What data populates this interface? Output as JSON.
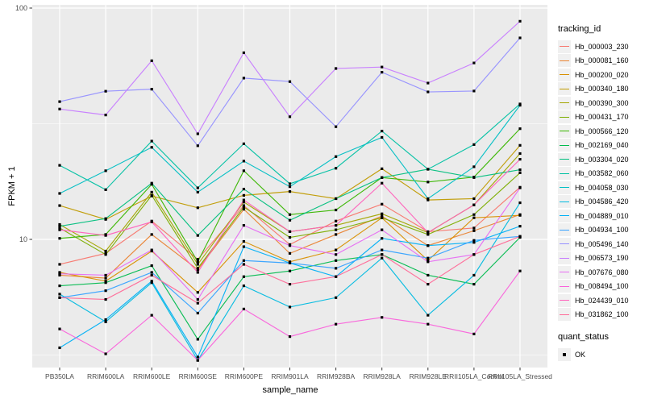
{
  "chart_data": {
    "type": "line",
    "title": "",
    "xlabel": "sample_name",
    "ylabel": "FPKM + 1",
    "y_scale": "log10",
    "y_major_ticks": [
      100,
      10
    ],
    "y_minor_ticks": [
      31.6,
      3.16
    ],
    "ylim": [
      2.8,
      102
    ],
    "grid": "on",
    "legend_position": "right",
    "legend_title": "tracking_id",
    "point_legend_title": "quant_status",
    "point_legend_items": [
      "OK"
    ],
    "point_shape": "black-square",
    "x_categories": [
      "PB350LA",
      "RRIM600LA",
      "RRIM600LE",
      "RRIM600SE",
      "RRIM600PE",
      "RRIM901LA",
      "RRIM928BA",
      "RRIM928LA",
      "RRIM928LE",
      "RRII105LA_Control",
      "RRII105LA_Stressed"
    ],
    "series": [
      {
        "name": "Hb_000003_230",
        "color": "#F8766D",
        "values": [
          7.8,
          8.7,
          12.0,
          8.2,
          14.0,
          9.5,
          12.0,
          14.2,
          10.8,
          11.2,
          16.8
        ]
      },
      {
        "name": "Hb_000081_160",
        "color": "#EA8331",
        "values": [
          7.0,
          6.8,
          10.5,
          7.4,
          13.5,
          8.7,
          10.5,
          12.6,
          9.4,
          10.9,
          12.8
        ]
      },
      {
        "name": "Hb_000200_020",
        "color": "#D89000",
        "values": [
          7.2,
          6.6,
          8.9,
          5.9,
          9.8,
          8.0,
          9.0,
          12.4,
          8.1,
          12.4,
          12.7
        ]
      },
      {
        "name": "Hb_000340_180",
        "color": "#C09B00",
        "values": [
          14.0,
          12.2,
          15.4,
          13.7,
          15.5,
          16.1,
          15.0,
          20.2,
          14.8,
          15.0,
          25.5
        ]
      },
      {
        "name": "Hb_000390_300",
        "color": "#A3A500",
        "values": [
          11.6,
          8.9,
          16.0,
          7.8,
          14.5,
          10.8,
          11.5,
          12.9,
          10.7,
          14.1,
          23.5
        ]
      },
      {
        "name": "Hb_000431_170",
        "color": "#7CAE00",
        "values": [
          11.2,
          8.6,
          15.5,
          7.5,
          13.8,
          10.2,
          11.0,
          12.4,
          10.5,
          12.8,
          19.4
        ]
      },
      {
        "name": "Hb_000566_120",
        "color": "#39B600",
        "values": [
          10.1,
          10.5,
          17.3,
          8.0,
          19.8,
          12.8,
          13.4,
          18.5,
          17.7,
          18.6,
          30.1
        ]
      },
      {
        "name": "Hb_002169_040",
        "color": "#00BB4E",
        "values": [
          6.3,
          6.5,
          7.7,
          3.7,
          6.9,
          7.3,
          8.1,
          8.6,
          7.0,
          6.4,
          10.2
        ]
      },
      {
        "name": "Hb_003304_020",
        "color": "#00BF7D",
        "values": [
          11.4,
          12.3,
          17.5,
          10.4,
          16.5,
          12.1,
          15.0,
          18.5,
          20.1,
          18.5,
          20.0
        ]
      },
      {
        "name": "Hb_003582_060",
        "color": "#00C1A3",
        "values": [
          20.9,
          16.4,
          26.6,
          16.7,
          25.9,
          17.4,
          20.3,
          29.4,
          20.1,
          25.7,
          38.5
        ]
      },
      {
        "name": "Hb_004058_030",
        "color": "#00BFC4",
        "values": [
          15.8,
          19.8,
          25.0,
          16.0,
          21.8,
          16.9,
          22.8,
          27.6,
          15.0,
          20.6,
          38.0
        ]
      },
      {
        "name": "Hb_004586_420",
        "color": "#00BAE0",
        "values": [
          5.8,
          4.4,
          6.5,
          3.0,
          6.3,
          5.1,
          5.6,
          8.3,
          4.7,
          7.0,
          14.4
        ]
      },
      {
        "name": "Hb_004889_010",
        "color": "#00B0F6",
        "values": [
          3.4,
          4.5,
          6.6,
          3.1,
          9.3,
          7.9,
          6.9,
          10.1,
          9.4,
          9.7,
          11.4
        ]
      },
      {
        "name": "Hb_004934_100",
        "color": "#35A2FF",
        "values": [
          5.6,
          6.0,
          7.2,
          4.8,
          8.1,
          7.9,
          7.5,
          9.0,
          8.3,
          9.9,
          10.3
        ]
      },
      {
        "name": "Hb_005496_140",
        "color": "#9590FF",
        "values": [
          39.4,
          43.7,
          44.6,
          25.4,
          49.8,
          48.1,
          30.7,
          52.8,
          43.4,
          43.8,
          74.3
        ]
      },
      {
        "name": "Hb_006573_190",
        "color": "#C77CFF",
        "values": [
          36.6,
          34.5,
          59.2,
          28.6,
          64.1,
          33.9,
          54.8,
          55.6,
          47.4,
          57.9,
          87.7
        ]
      },
      {
        "name": "Hb_007676_080",
        "color": "#E76BF3",
        "values": [
          7.1,
          7.0,
          9.0,
          5.5,
          11.5,
          9.4,
          8.6,
          11.0,
          8.0,
          8.6,
          16.7
        ]
      },
      {
        "name": "Hb_008494_100",
        "color": "#FA62DB",
        "values": [
          4.1,
          3.2,
          4.7,
          3.0,
          5.0,
          3.8,
          4.3,
          4.6,
          4.3,
          3.9,
          7.3
        ]
      },
      {
        "name": "Hb_024439_010",
        "color": "#FF62BC",
        "values": [
          11.0,
          10.4,
          11.9,
          7.2,
          14.8,
          10.8,
          11.5,
          17.5,
          10.7,
          14.1,
          22.2
        ]
      },
      {
        "name": "Hb_031862_100",
        "color": "#FF6A98",
        "values": [
          5.6,
          5.5,
          7.0,
          5.3,
          7.8,
          6.4,
          6.9,
          8.6,
          6.4,
          8.6,
          10.3
        ]
      }
    ]
  },
  "style": {
    "panel_bg": "#EBEBEB",
    "grid_color": "#FFFFFF",
    "tick_label_color": "#4D4D4D",
    "tick_mark_color": "#333333",
    "point_color": "#000000",
    "legend_key_bg": "#F0F0F0"
  }
}
